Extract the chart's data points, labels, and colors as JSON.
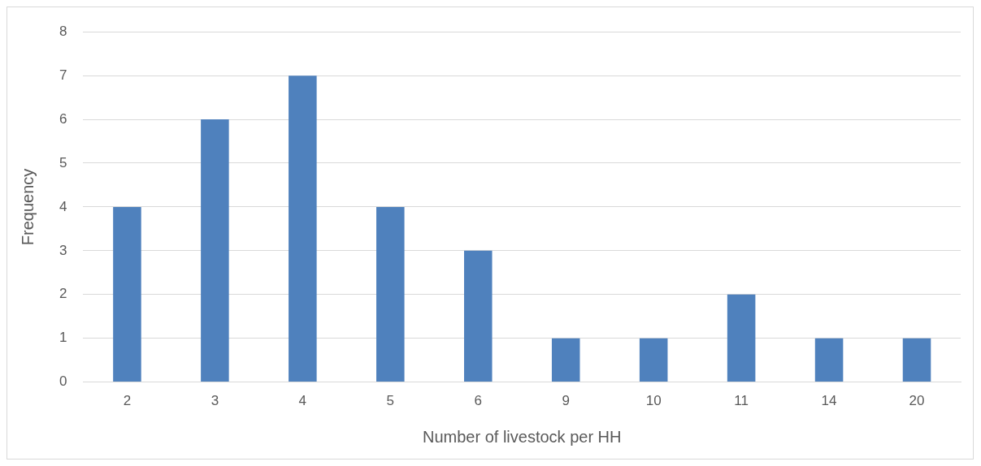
{
  "chart_data": {
    "type": "bar",
    "xlabel": "Number of livestock per HH",
    "ylabel": "Frequency",
    "categories": [
      "2",
      "3",
      "4",
      "5",
      "6",
      "9",
      "10",
      "11",
      "14",
      "20"
    ],
    "values": [
      4,
      6,
      7,
      4,
      3,
      1,
      1,
      2,
      1,
      1
    ],
    "color": "#4f81bd",
    "ylim": [
      0,
      8
    ],
    "yticks": [
      0,
      1,
      2,
      3,
      4,
      5,
      6,
      7,
      8
    ],
    "grid": "y",
    "legend": false
  }
}
